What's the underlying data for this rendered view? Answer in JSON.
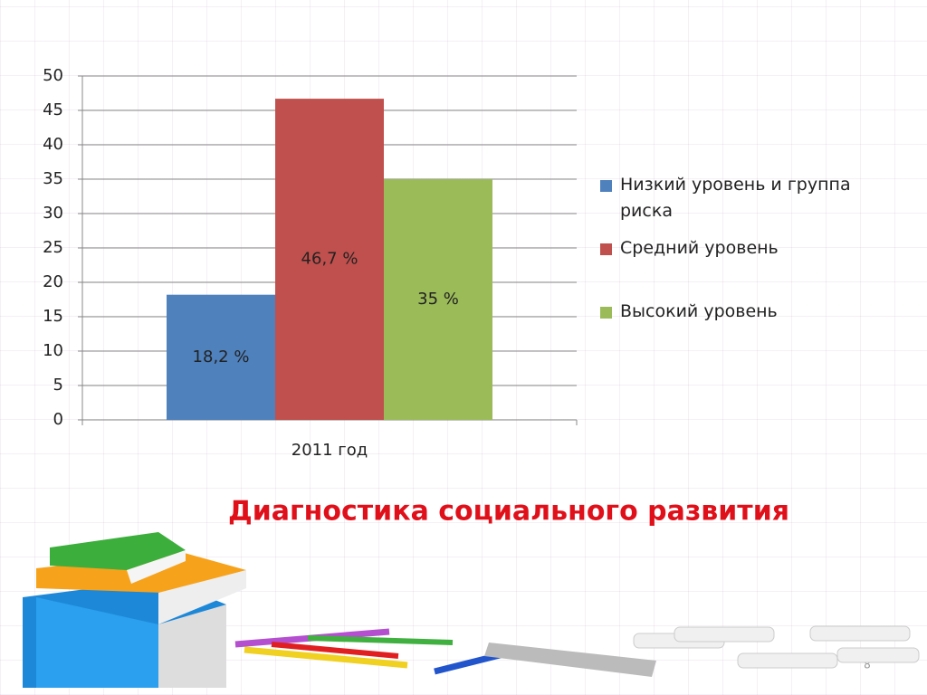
{
  "chart_data": {
    "type": "bar",
    "title": "Диагностика социального развития",
    "categories": [
      "2011 год"
    ],
    "series": [
      {
        "name": "Низкий уровень и группа риска",
        "color": "#4f81bd",
        "values": [
          18.2
        ],
        "value_labels": [
          "18,2 %"
        ]
      },
      {
        "name": "Средний уровень",
        "color": "#c0504d",
        "values": [
          46.7
        ],
        "value_labels": [
          "46,7 %"
        ]
      },
      {
        "name": "Высокий уровень",
        "color": "#9bbb59",
        "values": [
          35
        ],
        "value_labels": [
          "35 %"
        ]
      }
    ],
    "ylim": [
      0,
      50
    ],
    "yticks": [
      0,
      5,
      10,
      15,
      20,
      25,
      30,
      35,
      40,
      45,
      50
    ],
    "grid": true,
    "legend": "right"
  },
  "slide_number": "8"
}
